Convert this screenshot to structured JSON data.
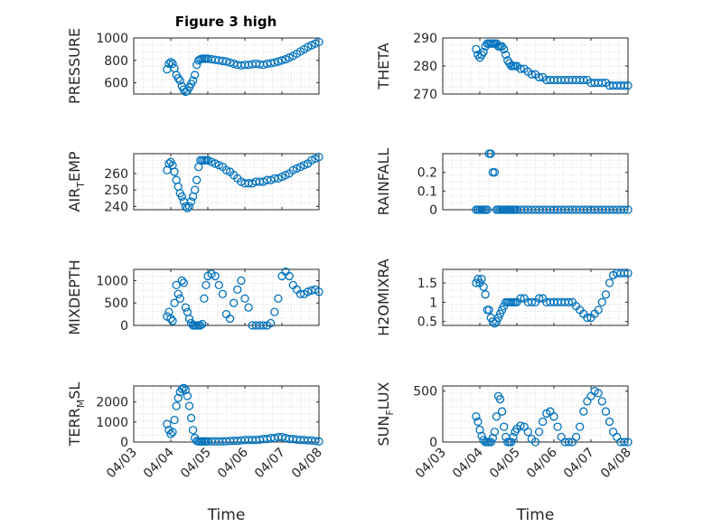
{
  "colors": {
    "marker": "#0072BD",
    "axis": "#262626",
    "grid": "#dcdcdc",
    "background": "#ffffff"
  },
  "chart_data": [
    {
      "type": "scatter",
      "title": "Figure 3 high",
      "ylabel": "PRESSURE",
      "ylim": [
        500,
        1000
      ],
      "yticks": [
        600,
        800,
        1000
      ],
      "xlim": [
        0,
        5
      ],
      "x": [
        0.9,
        0.95,
        1.0,
        1.05,
        1.1,
        1.15,
        1.2,
        1.25,
        1.3,
        1.35,
        1.4,
        1.45,
        1.5,
        1.55,
        1.6,
        1.65,
        1.7,
        1.75,
        1.8,
        1.85,
        1.9,
        1.95,
        2.0,
        2.1,
        2.2,
        2.3,
        2.4,
        2.5,
        2.6,
        2.7,
        2.8,
        2.9,
        3.0,
        3.1,
        3.2,
        3.3,
        3.4,
        3.5,
        3.6,
        3.7,
        3.8,
        3.9,
        4.0,
        4.1,
        4.2,
        4.3,
        4.4,
        4.5,
        4.6,
        4.7,
        4.8,
        4.9,
        5.0
      ],
      "y": [
        720,
        770,
        785,
        770,
        730,
        670,
        640,
        620,
        570,
        540,
        520,
        530,
        560,
        590,
        620,
        670,
        760,
        800,
        810,
        815,
        815,
        815,
        815,
        810,
        805,
        800,
        795,
        790,
        780,
        770,
        760,
        755,
        760,
        760,
        765,
        770,
        765,
        760,
        770,
        775,
        780,
        790,
        800,
        810,
        825,
        840,
        860,
        880,
        900,
        920,
        935,
        950,
        965
      ]
    },
    {
      "type": "scatter",
      "ylabel": "THETA",
      "ylim": [
        270,
        290
      ],
      "yticks": [
        270,
        280,
        290
      ],
      "xlim": [
        0,
        5
      ],
      "x": [
        0.9,
        0.95,
        1.0,
        1.05,
        1.1,
        1.15,
        1.2,
        1.25,
        1.3,
        1.35,
        1.4,
        1.45,
        1.5,
        1.55,
        1.6,
        1.65,
        1.7,
        1.75,
        1.8,
        1.85,
        1.9,
        1.95,
        2.0,
        2.1,
        2.2,
        2.3,
        2.4,
        2.5,
        2.6,
        2.7,
        2.8,
        2.9,
        3.0,
        3.1,
        3.2,
        3.3,
        3.4,
        3.5,
        3.6,
        3.7,
        3.8,
        3.9,
        4.0,
        4.1,
        4.2,
        4.3,
        4.4,
        4.5,
        4.6,
        4.7,
        4.8,
        4.9,
        5.0
      ],
      "y": [
        286,
        284,
        283,
        284,
        285,
        287,
        288,
        288,
        288,
        288,
        288,
        288,
        287,
        287,
        287,
        286,
        284,
        282,
        281,
        280,
        280,
        280,
        280,
        279,
        279,
        278,
        277,
        277,
        276,
        276,
        275,
        275,
        275,
        275,
        275,
        275,
        275,
        275,
        275,
        275,
        275,
        275,
        274,
        274,
        274,
        274,
        274,
        273,
        273,
        273,
        273,
        273,
        273
      ]
    },
    {
      "type": "scatter",
      "ylabel": "AIR",
      "ylabel_subscript": "T",
      "ylabel_suffix": "EMP",
      "ylim": [
        238,
        272
      ],
      "yticks": [
        240,
        250,
        260
      ],
      "xlim": [
        0,
        5
      ],
      "x": [
        0.9,
        0.95,
        1.0,
        1.05,
        1.1,
        1.15,
        1.2,
        1.25,
        1.3,
        1.35,
        1.4,
        1.45,
        1.5,
        1.55,
        1.6,
        1.65,
        1.7,
        1.75,
        1.8,
        1.85,
        1.9,
        1.95,
        2.0,
        2.1,
        2.2,
        2.3,
        2.4,
        2.5,
        2.6,
        2.7,
        2.8,
        2.9,
        3.0,
        3.1,
        3.2,
        3.3,
        3.4,
        3.5,
        3.6,
        3.7,
        3.8,
        3.9,
        4.0,
        4.1,
        4.2,
        4.3,
        4.4,
        4.5,
        4.6,
        4.7,
        4.8,
        4.9,
        5.0
      ],
      "y": [
        262,
        266,
        267,
        265,
        261,
        256,
        252,
        248,
        246,
        243,
        240,
        239,
        240,
        243,
        246,
        250,
        256,
        264,
        268,
        268,
        268,
        268,
        268,
        267,
        266,
        265,
        264,
        262,
        261,
        259,
        257,
        255,
        254,
        254,
        254,
        255,
        255,
        255,
        256,
        256,
        257,
        257,
        258,
        259,
        260,
        262,
        263,
        264,
        265,
        266,
        268,
        269,
        270
      ]
    },
    {
      "type": "scatter",
      "ylabel": "RAINFALL",
      "ylim": [
        0,
        0.3
      ],
      "yticks": [
        0,
        0.1,
        0.2
      ],
      "xlim": [
        0,
        5
      ],
      "x": [
        0.9,
        0.95,
        1.0,
        1.05,
        1.1,
        1.15,
        1.2,
        1.25,
        1.3,
        1.35,
        1.4,
        1.45,
        1.5,
        1.55,
        1.6,
        1.65,
        1.7,
        1.75,
        1.8,
        1.85,
        1.9,
        1.95,
        2.0,
        2.1,
        2.2,
        2.3,
        2.4,
        2.5,
        2.6,
        2.7,
        2.8,
        2.9,
        3.0,
        3.1,
        3.2,
        3.3,
        3.4,
        3.5,
        3.6,
        3.7,
        3.8,
        3.9,
        4.0,
        4.1,
        4.2,
        4.3,
        4.4,
        4.5,
        4.6,
        4.7,
        4.8,
        4.9,
        5.0
      ],
      "y": [
        0,
        0,
        0,
        0,
        0,
        0,
        0,
        0.3,
        0.3,
        0.2,
        0.2,
        0,
        0,
        0,
        0,
        0,
        0,
        0,
        0,
        0,
        0,
        0,
        0,
        0,
        0,
        0,
        0,
        0,
        0,
        0,
        0,
        0,
        0,
        0,
        0,
        0,
        0,
        0,
        0,
        0,
        0,
        0,
        0,
        0,
        0,
        0,
        0,
        0,
        0,
        0,
        0,
        0,
        0
      ]
    },
    {
      "type": "scatter",
      "ylabel": "MIXDEPTH",
      "ylim": [
        0,
        1250
      ],
      "yticks": [
        0,
        500,
        1000
      ],
      "xlim": [
        0,
        5
      ],
      "x": [
        0.9,
        0.95,
        1.0,
        1.05,
        1.1,
        1.15,
        1.2,
        1.25,
        1.3,
        1.35,
        1.4,
        1.45,
        1.5,
        1.55,
        1.6,
        1.65,
        1.7,
        1.75,
        1.8,
        1.85,
        1.9,
        1.95,
        2.0,
        2.1,
        2.2,
        2.3,
        2.4,
        2.5,
        2.6,
        2.7,
        2.8,
        2.9,
        3.0,
        3.1,
        3.2,
        3.3,
        3.4,
        3.5,
        3.6,
        3.7,
        3.8,
        3.9,
        4.0,
        4.1,
        4.2,
        4.3,
        4.4,
        4.5,
        4.6,
        4.7,
        4.8,
        4.9,
        5.0
      ],
      "y": [
        200,
        300,
        150,
        100,
        500,
        900,
        700,
        600,
        1000,
        950,
        400,
        300,
        150,
        50,
        0,
        0,
        0,
        0,
        0,
        30,
        600,
        900,
        1100,
        1150,
        1100,
        900,
        700,
        250,
        150,
        500,
        800,
        1000,
        600,
        400,
        0,
        0,
        0,
        0,
        0,
        50,
        300,
        600,
        1100,
        1200,
        1100,
        900,
        800,
        700,
        700,
        750,
        780,
        800,
        750
      ]
    },
    {
      "type": "scatter",
      "ylabel": "H2OMIXRA",
      "ylim": [
        0.4,
        1.85
      ],
      "yticks": [
        0.5,
        1,
        1.5
      ],
      "xlim": [
        0,
        5
      ],
      "x": [
        0.9,
        0.95,
        1.0,
        1.05,
        1.1,
        1.15,
        1.2,
        1.25,
        1.3,
        1.35,
        1.4,
        1.45,
        1.5,
        1.55,
        1.6,
        1.65,
        1.7,
        1.75,
        1.8,
        1.85,
        1.9,
        1.95,
        2.0,
        2.1,
        2.2,
        2.3,
        2.4,
        2.5,
        2.6,
        2.7,
        2.8,
        2.9,
        3.0,
        3.1,
        3.2,
        3.3,
        3.4,
        3.5,
        3.6,
        3.7,
        3.8,
        3.9,
        4.0,
        4.1,
        4.2,
        4.3,
        4.4,
        4.5,
        4.6,
        4.7,
        4.8,
        4.9,
        5.0
      ],
      "y": [
        1.5,
        1.6,
        1.5,
        1.6,
        1.4,
        1.2,
        0.8,
        0.8,
        0.6,
        0.5,
        0.45,
        0.5,
        0.6,
        0.7,
        0.8,
        0.9,
        1.0,
        1.0,
        1.0,
        1.0,
        1.0,
        1.0,
        1.0,
        1.1,
        1.1,
        1.0,
        1.0,
        1.0,
        1.1,
        1.1,
        1.0,
        1.0,
        1.0,
        1.0,
        1.0,
        1.0,
        1.0,
        1.0,
        0.9,
        0.8,
        0.7,
        0.6,
        0.6,
        0.7,
        0.8,
        1.0,
        1.2,
        1.5,
        1.7,
        1.75,
        1.75,
        1.75,
        1.75
      ]
    },
    {
      "type": "scatter",
      "ylabel": "TERR",
      "ylabel_subscript": "M",
      "ylabel_suffix": "SL",
      "ylim": [
        0,
        2800
      ],
      "yticks": [
        0,
        1000,
        2000
      ],
      "xlim": [
        0,
        5
      ],
      "x": [
        0.9,
        0.95,
        1.0,
        1.05,
        1.1,
        1.15,
        1.2,
        1.25,
        1.3,
        1.35,
        1.4,
        1.45,
        1.5,
        1.55,
        1.6,
        1.65,
        1.7,
        1.75,
        1.8,
        1.85,
        1.9,
        1.95,
        2.0,
        2.1,
        2.2,
        2.3,
        2.4,
        2.5,
        2.6,
        2.7,
        2.8,
        2.9,
        3.0,
        3.1,
        3.2,
        3.3,
        3.4,
        3.5,
        3.6,
        3.7,
        3.8,
        3.9,
        4.0,
        4.1,
        4.2,
        4.3,
        4.4,
        4.5,
        4.6,
        4.7,
        4.8,
        4.9,
        5.0
      ],
      "y": [
        900,
        600,
        400,
        500,
        1100,
        1800,
        2200,
        2500,
        2650,
        2700,
        2600,
        2300,
        1800,
        1200,
        600,
        200,
        50,
        30,
        30,
        30,
        30,
        30,
        30,
        30,
        30,
        30,
        30,
        40,
        50,
        60,
        60,
        80,
        100,
        100,
        100,
        100,
        120,
        150,
        150,
        200,
        200,
        250,
        250,
        200,
        150,
        150,
        120,
        100,
        100,
        80,
        80,
        50,
        30
      ]
    },
    {
      "type": "scatter",
      "ylabel": "SUN",
      "ylabel_subscript": "F",
      "ylabel_suffix": "LUX",
      "ylim": [
        0,
        550
      ],
      "yticks": [
        0,
        500
      ],
      "xlim": [
        0,
        5
      ],
      "x": [
        0.9,
        0.95,
        1.0,
        1.05,
        1.1,
        1.15,
        1.2,
        1.25,
        1.3,
        1.35,
        1.4,
        1.45,
        1.5,
        1.55,
        1.6,
        1.65,
        1.7,
        1.75,
        1.8,
        1.85,
        1.9,
        1.95,
        2.0,
        2.1,
        2.2,
        2.3,
        2.4,
        2.5,
        2.6,
        2.7,
        2.8,
        2.9,
        3.0,
        3.1,
        3.2,
        3.3,
        3.4,
        3.5,
        3.6,
        3.7,
        3.8,
        3.9,
        4.0,
        4.1,
        4.2,
        4.3,
        4.4,
        4.5,
        4.6,
        4.7,
        4.8,
        4.9,
        5.0
      ],
      "y": [
        250,
        200,
        120,
        60,
        20,
        0,
        0,
        0,
        0,
        40,
        100,
        250,
        450,
        420,
        300,
        150,
        50,
        0,
        0,
        0,
        50,
        100,
        130,
        160,
        150,
        100,
        30,
        0,
        100,
        200,
        280,
        300,
        250,
        150,
        50,
        0,
        0,
        0,
        50,
        150,
        300,
        400,
        450,
        500,
        480,
        400,
        300,
        200,
        100,
        50,
        0,
        0,
        0
      ]
    }
  ],
  "xaxis": {
    "tick_labels": [
      "04/03",
      "04/04",
      "04/05",
      "04/06",
      "04/07",
      "04/08"
    ],
    "label": "Time"
  }
}
